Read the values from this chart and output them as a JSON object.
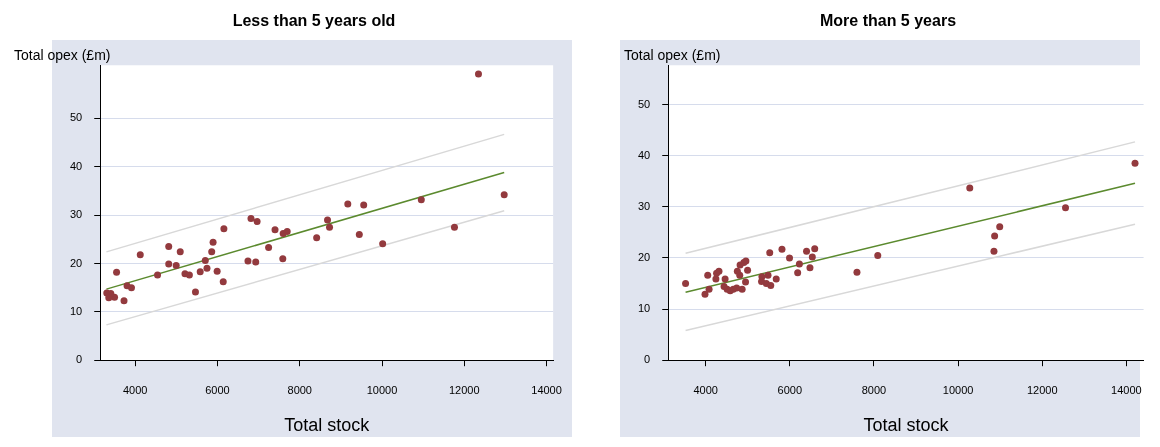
{
  "chart_data": [
    {
      "type": "scatter",
      "title": "Less than 5 years old",
      "xlabel": "Total stock",
      "ylabel": "Total opex (£m)",
      "marker": "circle",
      "grid": "y",
      "xlim": [
        3150,
        14160
      ],
      "ylim": [
        0,
        61
      ],
      "xticks": [
        4000,
        6000,
        8000,
        10000,
        12000,
        14000
      ],
      "yticks": [
        0,
        10,
        20,
        30,
        40,
        50
      ],
      "series": [
        {
          "type": "scatter",
          "color": "#933a3e",
          "x": [
            12345,
            12970,
            10955,
            9168,
            9555,
            8675,
            8724,
            9448,
            10016,
            11761,
            8411,
            6815,
            6963,
            7399,
            7597,
            7695,
            7243,
            7588,
            6741,
            6930,
            6156,
            5893,
            5860,
            5704,
            5745,
            5992,
            6140,
            5580,
            5465,
            5210,
            5317,
            5095,
            4815,
            4815,
            4996,
            4543,
            4123,
            3547,
            3802,
            3909,
            3728,
            3498,
            3309,
            3407,
            3358
          ],
          "values": [
            59.2,
            34.2,
            33.2,
            32.3,
            32.1,
            29.0,
            27.5,
            26.0,
            24.1,
            27.5,
            25.3,
            29.3,
            28.7,
            27.0,
            26.2,
            26.6,
            23.3,
            21.0,
            20.5,
            20.3,
            27.2,
            24.4,
            22.4,
            20.6,
            19.0,
            18.4,
            16.2,
            18.3,
            14.1,
            17.9,
            17.6,
            22.4,
            23.5,
            19.9,
            19.6,
            17.6,
            21.8,
            18.2,
            15.4,
            15.0,
            12.3,
            13.0,
            13.9,
            13.8,
            12.9
          ]
        },
        {
          "type": "line",
          "marker": "none",
          "color": "#d8d8d8",
          "x": [
            3300,
            12970
          ],
          "values": [
            22.4,
            46.7
          ]
        },
        {
          "type": "line",
          "marker": "none",
          "color": "#d8d8d8",
          "x": [
            3300,
            12970
          ],
          "values": [
            7.3,
            30.9
          ]
        },
        {
          "type": "line",
          "marker": "none",
          "color": "#5b8a2e",
          "x": [
            3300,
            12970
          ],
          "values": [
            14.7,
            38.8
          ]
        }
      ]
    },
    {
      "type": "scatter",
      "title": "More than 5 years",
      "xlabel": "Total stock",
      "ylabel": "Total opex (£m)",
      "marker": "circle",
      "grid": "y",
      "xlim": [
        3110,
        14410
      ],
      "ylim": [
        0,
        57.7
      ],
      "xticks": [
        4000,
        6000,
        8000,
        10000,
        12000,
        14000
      ],
      "yticks": [
        0,
        10,
        20,
        30,
        40,
        50
      ],
      "series": [
        {
          "type": "scatter",
          "color": "#933a3e",
          "x": [
            14206,
            10278,
            12554,
            10990,
            10869,
            10853,
            8091,
            7596,
            6592,
            6398,
            6535,
            6479,
            6228,
            6187,
            5993,
            5814,
            5523,
            5677,
            5482,
            5337,
            5328,
            5442,
            5547,
            4996,
            4956,
            4907,
            4818,
            4810,
            4753,
            4948,
            4867,
            4737,
            4656,
            4583,
            4510,
            4437,
            4462,
            4243,
            4316,
            4259,
            4049,
            4081,
            3984,
            3522
          ],
          "values": [
            38.5,
            33.7,
            29.8,
            26.1,
            24.3,
            21.3,
            20.5,
            17.2,
            21.8,
            21.3,
            20.2,
            18.1,
            18.8,
            17.1,
            20.0,
            21.7,
            21.0,
            15.9,
            16.6,
            16.3,
            15.4,
            15.0,
            14.6,
            17.6,
            19.4,
            19.1,
            18.6,
            16.6,
            17.4,
            15.3,
            13.9,
            14.1,
            13.9,
            13.6,
            13.9,
            14.4,
            15.9,
            15.9,
            17.4,
            17.0,
            16.6,
            13.9,
            12.9,
            15.0
          ]
        },
        {
          "type": "line",
          "marker": "none",
          "color": "#d8d8d8",
          "x": [
            3522,
            14206
          ],
          "values": [
            20.9,
            42.7
          ]
        },
        {
          "type": "line",
          "marker": "none",
          "color": "#d8d8d8",
          "x": [
            3522,
            14206
          ],
          "values": [
            5.8,
            26.6
          ]
        },
        {
          "type": "line",
          "marker": "none",
          "color": "#5b8a2e",
          "x": [
            3522,
            14206
          ],
          "values": [
            13.3,
            34.6
          ]
        }
      ]
    }
  ]
}
